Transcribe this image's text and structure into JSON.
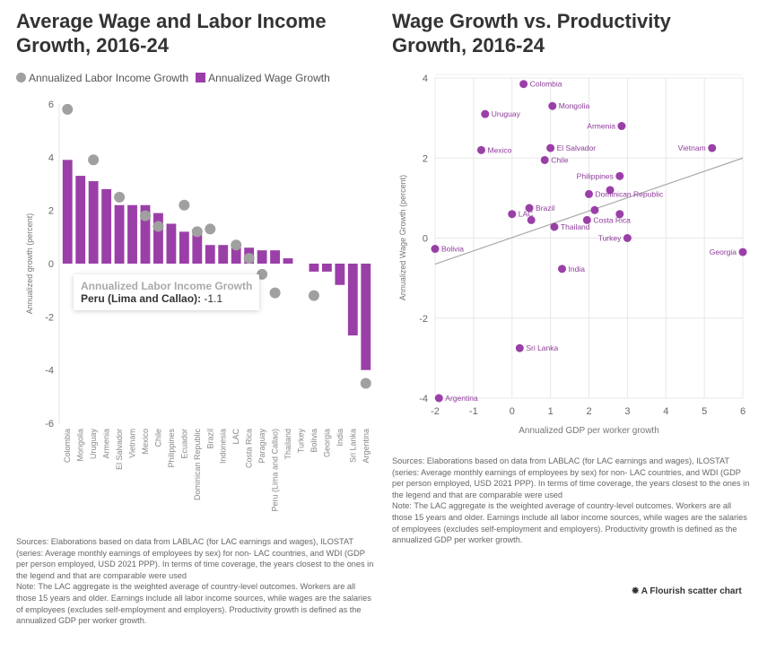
{
  "chart_data": [
    {
      "type": "bar",
      "title": "Average Wage and Labor Income Growth, 2016-24",
      "ylabel": "Annualized growth (percent)",
      "ylim": [
        -6,
        6
      ],
      "yticks": [
        -6,
        -4,
        -2,
        0,
        2,
        4,
        6
      ],
      "legend": [
        "Annualized Labor Income Growth",
        "Annualized Wage Growth"
      ],
      "categories": [
        "Colombia",
        "Mongolia",
        "Uruguay",
        "Armenia",
        "El Salvador",
        "Vietnam",
        "Mexico",
        "Chile",
        "Philippines",
        "Ecuador",
        "Dominican Republic",
        "Brazil",
        "Indonesia",
        "LAC",
        "Costa Rica",
        "Paraguay",
        "Peru (Lima and Callao)",
        "Thailand",
        "Turkey",
        "Bolivia",
        "Georgia",
        "India",
        "Sri Lanka",
        "Argentina"
      ],
      "series": [
        {
          "name": "Annualized Wage Growth",
          "kind": "bar",
          "color": "#9b3fa8",
          "values": [
            3.9,
            3.3,
            3.1,
            2.8,
            2.2,
            2.2,
            2.2,
            1.9,
            1.5,
            1.2,
            1.1,
            0.7,
            0.7,
            0.6,
            0.6,
            0.5,
            0.5,
            0.2,
            0,
            -0.3,
            -0.3,
            -0.8,
            -2.7,
            -4.0
          ]
        },
        {
          "name": "Annualized Labor Income Growth",
          "kind": "dot",
          "color": "#a0a0a0",
          "values": [
            5.8,
            null,
            3.9,
            null,
            2.5,
            null,
            1.8,
            1.4,
            null,
            2.2,
            1.2,
            1.3,
            null,
            0.7,
            0.2,
            -0.4,
            -1.1,
            null,
            null,
            -1.2,
            null,
            null,
            null,
            -4.5
          ]
        }
      ],
      "tooltip": {
        "series": "Annualized Labor Income Growth",
        "label": "Peru (Lima and Callao):",
        "value": "-1.1"
      },
      "note": "Sources: Elaborations based on data from LABLAC (for LAC earnings and wages), ILOSTAT (series: Average monthly earnings of employees by sex) for non- LAC countries, and WDI (GDP per person employed, USD 2021 PPP). In terms of time coverage, the years closest to the ones in the legend and that are comparable were used",
      "note2": "Note: The LAC aggregate is the weighted average of country-level outcomes. Workers are all those 15 years and older. Earnings include all labor income sources, while wages are the salaries of employees (excludes self-employment and employers). Productivity growth is defined as the annualized GDP per worker growth."
    },
    {
      "type": "scatter",
      "title": "Wage Growth vs. Productivity Growth, 2016-24",
      "xlabel": "Annualized GDP per worker growth",
      "ylabel": "Annualized Wage Growth (percent)",
      "xlim": [
        -2,
        6
      ],
      "ylim": [
        -4,
        4
      ],
      "xticks": [
        -2,
        -1,
        0,
        1,
        2,
        3,
        4,
        5,
        6
      ],
      "yticks": [
        -4,
        -2,
        0,
        2,
        4
      ],
      "color": "#9b3fa8",
      "trendline": [
        [
          -2,
          -0.65
        ],
        [
          6,
          2.0
        ]
      ],
      "points": [
        {
          "label": "Colombia",
          "x": 0.3,
          "y": 3.85,
          "side": "right"
        },
        {
          "label": "Mongolia",
          "x": 1.05,
          "y": 3.3,
          "side": "right"
        },
        {
          "label": "Uruguay",
          "x": -0.7,
          "y": 3.1,
          "side": "right"
        },
        {
          "label": "Armenia",
          "x": 2.85,
          "y": 2.8,
          "side": "left"
        },
        {
          "label": "Mexico",
          "x": -0.8,
          "y": 2.2,
          "side": "right"
        },
        {
          "label": "El Salvador",
          "x": 1.0,
          "y": 2.25,
          "side": "right"
        },
        {
          "label": "Vietnam",
          "x": 5.2,
          "y": 2.25,
          "side": "left"
        },
        {
          "label": "Chile",
          "x": 0.85,
          "y": 1.95,
          "side": "right"
        },
        {
          "label": "Philippines",
          "x": 2.8,
          "y": 1.55,
          "side": "left"
        },
        {
          "label": "",
          "x": 2.55,
          "y": 1.2,
          "side": "right"
        },
        {
          "label": "Dominican Republic",
          "x": 2.0,
          "y": 1.1,
          "side": "right"
        },
        {
          "label": "Brazil",
          "x": 0.45,
          "y": 0.75,
          "side": "right"
        },
        {
          "label": "LAC",
          "x": 0.0,
          "y": 0.6,
          "side": "right"
        },
        {
          "label": "",
          "x": 0.5,
          "y": 0.45,
          "side": "right"
        },
        {
          "label": "",
          "x": 2.15,
          "y": 0.7,
          "side": "right"
        },
        {
          "label": "Costa Rica",
          "x": 1.95,
          "y": 0.45,
          "side": "right"
        },
        {
          "label": "",
          "x": 2.8,
          "y": 0.6,
          "side": "right"
        },
        {
          "label": "Thailand",
          "x": 1.1,
          "y": 0.28,
          "side": "right"
        },
        {
          "label": "Turkey",
          "x": 3.0,
          "y": 0.0,
          "side": "left"
        },
        {
          "label": "Bolivia",
          "x": -2.0,
          "y": -0.27,
          "side": "right"
        },
        {
          "label": "Georgia",
          "x": 6.0,
          "y": -0.35,
          "side": "left"
        },
        {
          "label": "India",
          "x": 1.3,
          "y": -0.77,
          "side": "right"
        },
        {
          "label": "Sri Lanka",
          "x": 0.2,
          "y": -2.75,
          "side": "right"
        },
        {
          "label": "Argentina",
          "x": -1.9,
          "y": -4.0,
          "side": "right"
        }
      ],
      "note": "Sources: Elaborations based on data from LABLAC (for LAC earnings and wages), ILOSTAT (series: Average monthly earnings of employees by sex) for non- LAC countries, and WDI (GDP per person employed, USD 2021 PPP). In terms of time coverage, the years closest to the ones in the legend and that are comparable were used",
      "note2": "Note: The LAC aggregate is the weighted average of country-level outcomes. Workers are all those 15 years and older. Earnings include all labor income sources, while wages are the salaries of employees (excludes self-employment and employers). Productivity growth is defined as the annualized GDP per worker growth."
    }
  ],
  "credit": "A Flourish scatter chart"
}
